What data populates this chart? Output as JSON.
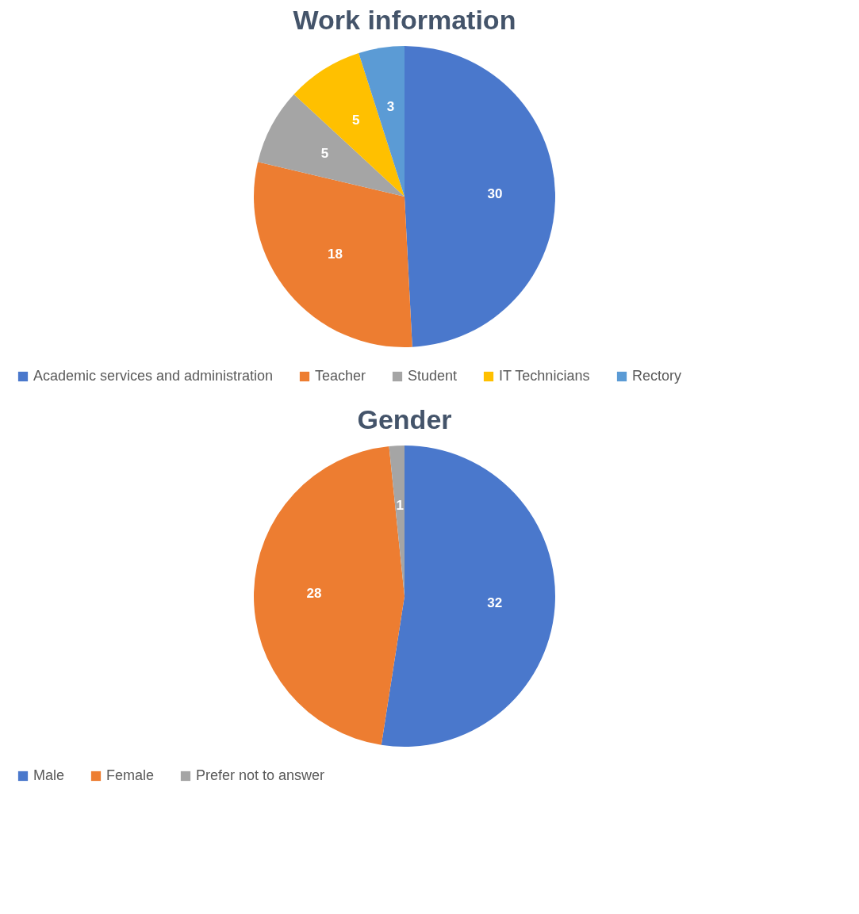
{
  "chart_data": [
    {
      "type": "pie",
      "title": "Work information",
      "categories": [
        "Academic services and administration",
        "Teacher",
        "Student",
        "IT Technicians",
        "Rectory"
      ],
      "values": [
        30,
        18,
        5,
        5,
        3
      ],
      "colors": [
        "#4a78cc",
        "#ed7d31",
        "#a5a5a5",
        "#ffc000",
        "#5b9bd5"
      ],
      "data_labels": true,
      "legend": "bottom"
    },
    {
      "type": "pie",
      "title": "Gender",
      "categories": [
        "Male",
        "Female",
        "Prefer not to answer"
      ],
      "values": [
        32,
        28,
        1
      ],
      "colors": [
        "#4a78cc",
        "#ed7d31",
        "#a5a5a5"
      ],
      "data_labels": true,
      "legend": "bottom"
    }
  ]
}
